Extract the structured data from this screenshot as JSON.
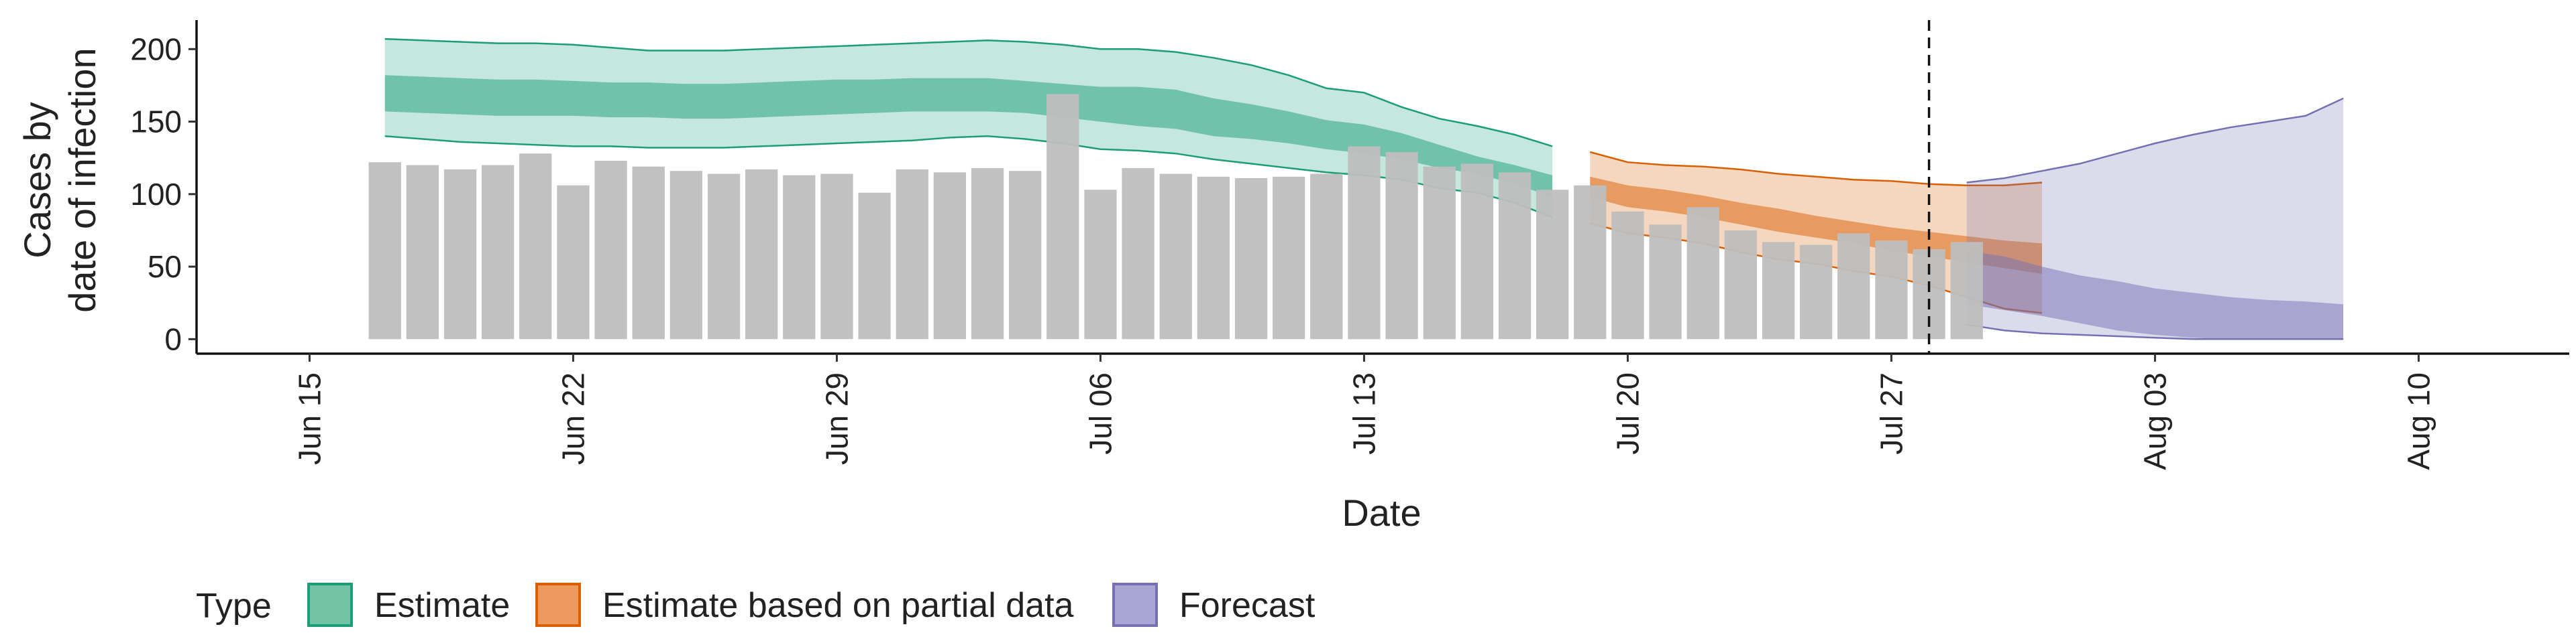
{
  "chart_data": {
    "type": "bar",
    "title": "",
    "xlabel": "Date",
    "ylabel": [
      "Cases by",
      "date of infection"
    ],
    "ylim": [
      -10,
      220
    ],
    "yticks": [
      0,
      50,
      100,
      150,
      200
    ],
    "xlim": [
      "2020-06-12",
      "2020-08-14"
    ],
    "xticks": [
      "2020-06-15",
      "2020-06-22",
      "2020-06-29",
      "2020-07-06",
      "2020-07-13",
      "2020-07-20",
      "2020-07-27",
      "2020-08-03",
      "2020-08-10"
    ],
    "xtick_labels": [
      "Jun 15",
      "Jun 22",
      "Jun 29",
      "Jul 06",
      "Jul 13",
      "Jul 20",
      "Jul 27",
      "Aug 03",
      "Aug 10"
    ],
    "grid": false,
    "legend": {
      "title": "Type",
      "placement": "bottom",
      "entries": [
        {
          "label": "Estimate",
          "fill": "#73c3a6",
          "stroke": "#1b9e77"
        },
        {
          "label": "Estimate based on partial data",
          "fill": "#ec9a5e",
          "stroke": "#d95f02"
        },
        {
          "label": "Forecast",
          "fill": "#a9a6d3",
          "stroke": "#7570b3"
        }
      ]
    },
    "reference_line": {
      "date": "2020-07-28",
      "style": "dashed"
    },
    "bars": {
      "color": "#bebebe",
      "start_date": "2020-06-17",
      "values": [
        122,
        120,
        117,
        120,
        128,
        106,
        123,
        119,
        116,
        114,
        117,
        113,
        114,
        101,
        117,
        115,
        118,
        116,
        169,
        103,
        118,
        114,
        112,
        111,
        112,
        114,
        133,
        129,
        119,
        121,
        115,
        103,
        106,
        88,
        79,
        91,
        75,
        67,
        65,
        73,
        68,
        62,
        67
      ]
    },
    "series": [
      {
        "name": "Estimate",
        "start_date": "2020-06-17",
        "color": "#1b9e77",
        "outer_upper": [
          207,
          206,
          205,
          204,
          204,
          203,
          201,
          199,
          199,
          199,
          200,
          201,
          202,
          203,
          204,
          205,
          206,
          205,
          203,
          200,
          200,
          198,
          194,
          189,
          182,
          173,
          170,
          160,
          152,
          147,
          141,
          133
        ],
        "outer_lower": [
          140,
          138,
          136,
          135,
          134,
          133,
          133,
          132,
          132,
          132,
          133,
          134,
          135,
          136,
          137,
          139,
          140,
          138,
          135,
          131,
          130,
          128,
          124,
          121,
          118,
          115,
          113,
          110,
          104,
          101,
          94,
          84
        ],
        "inner_upper": [
          182,
          181,
          180,
          179,
          179,
          178,
          177,
          177,
          176,
          176,
          177,
          178,
          179,
          179,
          180,
          180,
          180,
          178,
          176,
          174,
          174,
          172,
          166,
          162,
          157,
          151,
          148,
          142,
          134,
          126,
          120,
          113
        ],
        "inner_lower": [
          157,
          156,
          155,
          154,
          154,
          154,
          153,
          153,
          152,
          152,
          153,
          154,
          155,
          156,
          157,
          157,
          157,
          156,
          153,
          150,
          147,
          145,
          140,
          138,
          135,
          131,
          128,
          124,
          118,
          114,
          107,
          98
        ]
      },
      {
        "name": "Estimate based on partial data",
        "start_date": "2020-07-19",
        "color": "#d95f02",
        "outer_upper": [
          129,
          122,
          120,
          119,
          117,
          114,
          112,
          110,
          109,
          107,
          106,
          106,
          108
        ],
        "outer_lower": [
          80,
          73,
          70,
          66,
          60,
          55,
          52,
          47,
          43,
          37,
          29,
          21,
          18
        ],
        "inner_upper": [
          112,
          106,
          103,
          99,
          94,
          90,
          85,
          81,
          77,
          74,
          71,
          68,
          66
        ],
        "inner_lower": [
          98,
          91,
          88,
          84,
          79,
          74,
          70,
          66,
          61,
          57,
          53,
          49,
          45
        ]
      },
      {
        "name": "Forecast",
        "start_date": "2020-07-29",
        "color": "#7570b3",
        "outer_upper": [
          108,
          111,
          116,
          121,
          128,
          135,
          141,
          146,
          150,
          154,
          166
        ],
        "outer_lower": [
          10,
          6,
          4,
          3,
          2,
          1,
          0,
          0,
          0,
          0,
          0
        ],
        "inner_upper": [
          61,
          57,
          50,
          44,
          40,
          35,
          32,
          29,
          27,
          26,
          24
        ],
        "inner_lower": [
          24,
          20,
          16,
          11,
          6,
          3,
          1,
          0,
          0,
          0,
          0
        ]
      }
    ]
  }
}
